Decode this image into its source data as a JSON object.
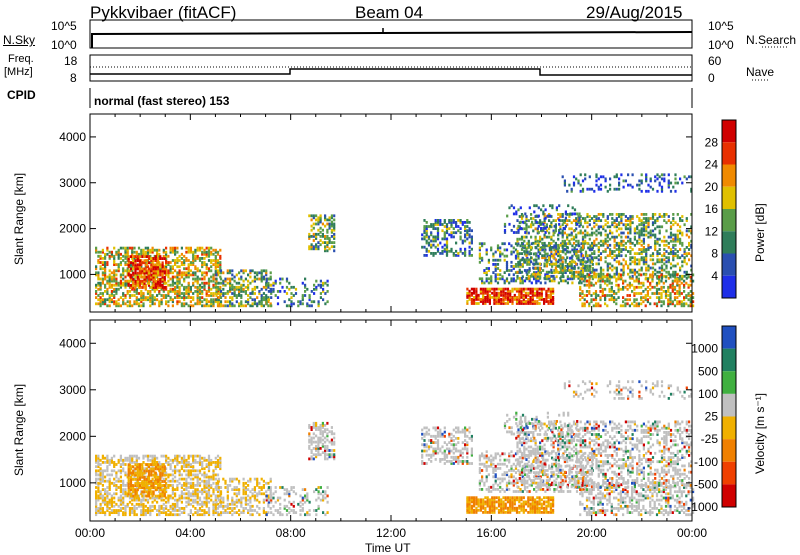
{
  "header": {
    "radar": "Pykkvibaer (fitACF)",
    "beam": "Beam 04",
    "date": "29/Aug/2015"
  },
  "left_labels": {
    "nsky": "N.Sky",
    "freq": "Freq.",
    "mhz": "[MHz]",
    "cpid": "CPID"
  },
  "right_labels": {
    "nsearch": "N.Search",
    "nave": "Nave"
  },
  "cpid_text": "normal (fast stereo) 153",
  "noise_ticks_left": [
    "10^5",
    "10^0"
  ],
  "noise_ticks_right": [
    "10^5",
    "10^0"
  ],
  "freq_ticks_left": [
    "18",
    "8"
  ],
  "freq_ticks_right": [
    "60",
    "0"
  ],
  "colors": {
    "power": [
      "#1f2fe8",
      "#2a4fb0",
      "#2f7d5a",
      "#5a9d48",
      "#e0c000",
      "#f08a00",
      "#e83000",
      "#d00000"
    ],
    "velocity": [
      "#d00000",
      "#f04000",
      "#f08000",
      "#f0b000",
      "#c0c0c0",
      "#40b040",
      "#208060",
      "#2050c0"
    ]
  },
  "chart_data": [
    {
      "type": "heatmap",
      "name": "power",
      "xlabel": "Time UT",
      "ylabel": "Slant Range [km]",
      "x_ticks": [
        "00:00",
        "04:00",
        "08:00",
        "12:00",
        "16:00",
        "20:00",
        "00:00"
      ],
      "y_ticks": [
        "1000",
        "2000",
        "3000",
        "4000"
      ],
      "xlim_hours": [
        0,
        24
      ],
      "ylim_km": [
        180,
        4500
      ],
      "colorbar_label": "Power [dB]",
      "colorbar_ticks": [
        "4",
        "8",
        "12",
        "16",
        "20",
        "24",
        "28"
      ],
      "colorbar_range": [
        0,
        30
      ]
    },
    {
      "type": "heatmap",
      "name": "velocity",
      "xlabel": "Time UT",
      "ylabel": "Slant Range [km]",
      "x_ticks": [
        "00:00",
        "04:00",
        "08:00",
        "12:00",
        "16:00",
        "20:00",
        "00:00"
      ],
      "y_ticks": [
        "1000",
        "2000",
        "3000",
        "4000"
      ],
      "xlim_hours": [
        0,
        24
      ],
      "ylim_km": [
        180,
        4500
      ],
      "colorbar_label": "Velocity [m s⁻¹]",
      "colorbar_ticks": [
        "1000",
        "500",
        "100",
        "25",
        "-25",
        "-100",
        "-500",
        "-1000"
      ]
    }
  ]
}
